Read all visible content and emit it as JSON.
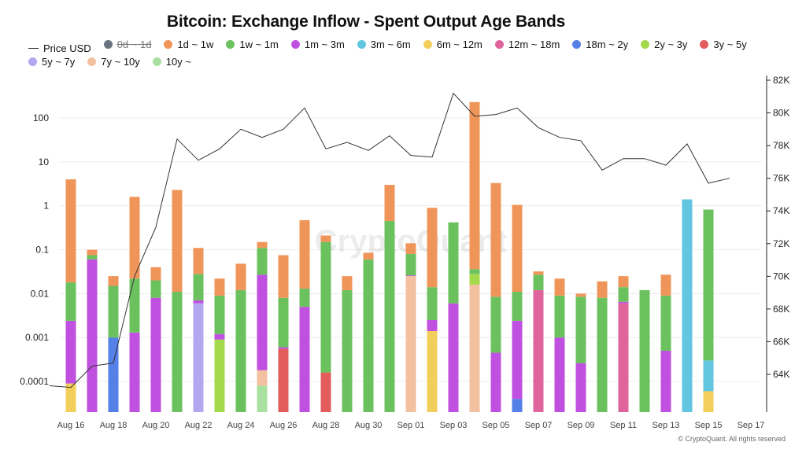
{
  "title": "Bitcoin: Exchange Inflow - Spent Output Age Bands",
  "footer": "© CryptoQuant. All rights reserved",
  "watermark": "CryptoQuant",
  "legend": [
    {
      "name": "Price USD",
      "type": "line",
      "color": "#333333"
    },
    {
      "name": "0d ~ 1d",
      "color": "#6b7280",
      "disabled": true
    },
    {
      "name": "1d ~ 1w",
      "color": "#f0955a"
    },
    {
      "name": "1w ~ 1m",
      "color": "#6cc15f"
    },
    {
      "name": "1m ~ 3m",
      "color": "#c050e0"
    },
    {
      "name": "3m ~ 6m",
      "color": "#62c6e0"
    },
    {
      "name": "6m ~ 12m",
      "color": "#f2cf5b"
    },
    {
      "name": "12m ~ 18m",
      "color": "#e0649c"
    },
    {
      "name": "18m ~ 2y",
      "color": "#5580e8"
    },
    {
      "name": "2y ~ 3y",
      "color": "#a5d94c"
    },
    {
      "name": "3y ~ 5y",
      "color": "#e25c5c"
    },
    {
      "name": "5y ~ 7y",
      "color": "#b3a8f0"
    },
    {
      "name": "7y ~ 10y",
      "color": "#f3c0a0"
    },
    {
      "name": "10y ~",
      "color": "#a8e0a0"
    }
  ],
  "chart_data": {
    "type": "bar",
    "stacked": true,
    "y_scale": "log",
    "ylim": [
      3e-05,
      700
    ],
    "y_ticks": [
      0.0001,
      0.001,
      0.01,
      0.1,
      1,
      10,
      100
    ],
    "y_tick_labels": [
      "0.0001",
      "0.001",
      "0.01",
      "0.1",
      "1",
      "10",
      "100"
    ],
    "y2_range": [
      62700,
      82000
    ],
    "y2_ticks": [
      64000,
      66000,
      68000,
      70000,
      72000,
      74000,
      76000,
      78000,
      80000,
      82000
    ],
    "y2_tick_labels": [
      "64K",
      "66K",
      "68K",
      "70K",
      "72K",
      "74K",
      "76K",
      "78K",
      "80K",
      "82K"
    ],
    "x_tick_labels": [
      "Aug 16",
      "Aug 18",
      "Aug 20",
      "Aug 22",
      "Aug 24",
      "Aug 26",
      "Aug 28",
      "Aug 30",
      "Sep 01",
      "Sep 03",
      "Sep 05",
      "Sep 07",
      "Sep 09",
      "Sep 11",
      "Sep 13",
      "Sep 15",
      "Sep 17"
    ],
    "bars": [
      {
        "date": "Aug 16",
        "segments": [
          {
            "band": "6m ~ 12m",
            "top": 9e-05
          },
          {
            "band": "1m ~ 3m",
            "top": 0.0024
          },
          {
            "band": "1w ~ 1m",
            "top": 0.018
          },
          {
            "band": "1d ~ 1w",
            "top": 4.0
          }
        ]
      },
      {
        "date": "Aug 17",
        "segments": [
          {
            "band": "1m ~ 3m",
            "top": 0.06
          },
          {
            "band": "1w ~ 1m",
            "top": 0.075
          },
          {
            "band": "1d ~ 1w",
            "top": 0.1
          }
        ]
      },
      {
        "date": "Aug 18",
        "segments": [
          {
            "band": "18m ~ 2y",
            "top": 0.001
          },
          {
            "band": "1w ~ 1m",
            "top": 0.015
          },
          {
            "band": "1d ~ 1w",
            "top": 0.025
          }
        ]
      },
      {
        "date": "Aug 19",
        "segments": [
          {
            "band": "1m ~ 3m",
            "top": 0.0013
          },
          {
            "band": "1w ~ 1m",
            "top": 0.022
          },
          {
            "band": "1d ~ 1w",
            "top": 1.6
          }
        ]
      },
      {
        "date": "Aug 20",
        "segments": [
          {
            "band": "1m ~ 3m",
            "top": 0.008
          },
          {
            "band": "1w ~ 1m",
            "top": 0.02
          },
          {
            "band": "1d ~ 1w",
            "top": 0.04
          }
        ]
      },
      {
        "date": "Aug 21",
        "segments": [
          {
            "band": "1w ~ 1m",
            "top": 0.011
          },
          {
            "band": "1d ~ 1w",
            "top": 2.3
          }
        ]
      },
      {
        "date": "Aug 22",
        "segments": [
          {
            "band": "5y ~ 7y",
            "top": 0.006
          },
          {
            "band": "1m ~ 3m",
            "top": 0.007
          },
          {
            "band": "1w ~ 1m",
            "top": 0.028
          },
          {
            "band": "1d ~ 1w",
            "top": 0.11
          }
        ]
      },
      {
        "date": "Aug 23",
        "segments": [
          {
            "band": "2y ~ 3y",
            "top": 0.0009
          },
          {
            "band": "1m ~ 3m",
            "top": 0.0012
          },
          {
            "band": "1w ~ 1m",
            "top": 0.009
          },
          {
            "band": "1d ~ 1w",
            "top": 0.022
          }
        ]
      },
      {
        "date": "Aug 24",
        "segments": [
          {
            "band": "1w ~ 1m",
            "top": 0.012
          },
          {
            "band": "1d ~ 1w",
            "top": 0.048
          }
        ]
      },
      {
        "date": "Aug 25",
        "segments": [
          {
            "band": "10y ~",
            "top": 8e-05
          },
          {
            "band": "7y ~ 10y",
            "top": 0.00018
          },
          {
            "band": "1m ~ 3m",
            "top": 0.027
          },
          {
            "band": "1w ~ 1m",
            "top": 0.11
          },
          {
            "band": "1d ~ 1w",
            "top": 0.15
          }
        ]
      },
      {
        "date": "Aug 26",
        "segments": [
          {
            "band": "3y ~ 5y",
            "top": 0.00055
          },
          {
            "band": "1m ~ 3m",
            "top": 0.0006
          },
          {
            "band": "1w ~ 1m",
            "top": 0.008
          },
          {
            "band": "1d ~ 1w",
            "top": 0.075
          }
        ]
      },
      {
        "date": "Aug 27",
        "segments": [
          {
            "band": "1m ~ 3m",
            "top": 0.005
          },
          {
            "band": "1w ~ 1m",
            "top": 0.013
          },
          {
            "band": "1d ~ 1w",
            "top": 0.47
          }
        ]
      },
      {
        "date": "Aug 28",
        "segments": [
          {
            "band": "3y ~ 5y",
            "top": 0.00016
          },
          {
            "band": "1w ~ 1m",
            "top": 0.15
          },
          {
            "band": "1d ~ 1w",
            "top": 0.21
          }
        ]
      },
      {
        "date": "Aug 29",
        "segments": [
          {
            "band": "1w ~ 1m",
            "top": 0.012
          },
          {
            "band": "1d ~ 1w",
            "top": 0.025
          }
        ]
      },
      {
        "date": "Aug 30",
        "segments": [
          {
            "band": "1w ~ 1m",
            "top": 0.06
          },
          {
            "band": "1d ~ 1w",
            "top": 0.085
          }
        ]
      },
      {
        "date": "Aug 31",
        "segments": [
          {
            "band": "1w ~ 1m",
            "top": 0.45
          },
          {
            "band": "1d ~ 1w",
            "top": 3.0
          }
        ]
      },
      {
        "date": "Sep 01",
        "segments": [
          {
            "band": "7y ~ 10y",
            "top": 0.025
          },
          {
            "band": "1m ~ 3m",
            "top": 0.026
          },
          {
            "band": "1w ~ 1m",
            "top": 0.08
          },
          {
            "band": "1d ~ 1w",
            "top": 0.14
          }
        ]
      },
      {
        "date": "Sep 02",
        "segments": [
          {
            "band": "6m ~ 12m",
            "top": 0.0014
          },
          {
            "band": "1m ~ 3m",
            "top": 0.0025
          },
          {
            "band": "1w ~ 1m",
            "top": 0.014
          },
          {
            "band": "1d ~ 1w",
            "top": 0.9
          }
        ]
      },
      {
        "date": "Sep 03",
        "segments": [
          {
            "band": "1m ~ 3m",
            "top": 0.006
          },
          {
            "band": "1w ~ 1m",
            "top": 0.42
          }
        ]
      },
      {
        "date": "Sep 04",
        "segments": [
          {
            "band": "7y ~ 10y",
            "top": 0.016
          },
          {
            "band": "2y ~ 3y",
            "top": 0.028
          },
          {
            "band": "1w ~ 1m",
            "top": 0.036
          },
          {
            "band": "1d ~ 1w",
            "top": 230
          }
        ]
      },
      {
        "date": "Sep 05",
        "segments": [
          {
            "band": "1m ~ 3m",
            "top": 0.00045
          },
          {
            "band": "1w ~ 1m",
            "top": 0.0085
          },
          {
            "band": "1d ~ 1w",
            "top": 3.3
          }
        ]
      },
      {
        "date": "Sep 06",
        "segments": [
          {
            "band": "18m ~ 2y",
            "top": 4e-05
          },
          {
            "band": "1m ~ 3m",
            "top": 0.0024
          },
          {
            "band": "1w ~ 1m",
            "top": 0.011
          },
          {
            "band": "1d ~ 1w",
            "top": 1.05
          }
        ]
      },
      {
        "date": "Sep 07",
        "segments": [
          {
            "band": "12m ~ 18m",
            "top": 0.012
          },
          {
            "band": "1w ~ 1m",
            "top": 0.027
          },
          {
            "band": "1d ~ 1w",
            "top": 0.032
          }
        ]
      },
      {
        "date": "Sep 08",
        "segments": [
          {
            "band": "1m ~ 3m",
            "top": 0.001
          },
          {
            "band": "1w ~ 1m",
            "top": 0.009
          },
          {
            "band": "1d ~ 1w",
            "top": 0.022
          }
        ]
      },
      {
        "date": "Sep 09",
        "segments": [
          {
            "band": "1m ~ 3m",
            "top": 0.00026
          },
          {
            "band": "1w ~ 1m",
            "top": 0.0085
          },
          {
            "band": "1d ~ 1w",
            "top": 0.01
          }
        ]
      },
      {
        "date": "Sep 10",
        "segments": [
          {
            "band": "1w ~ 1m",
            "top": 0.008
          },
          {
            "band": "1d ~ 1w",
            "top": 0.019
          }
        ]
      },
      {
        "date": "Sep 11",
        "segments": [
          {
            "band": "12m ~ 18m",
            "top": 0.006
          },
          {
            "band": "1m ~ 3m",
            "top": 0.0065
          },
          {
            "band": "1w ~ 1m",
            "top": 0.014
          },
          {
            "band": "1d ~ 1w",
            "top": 0.025
          }
        ]
      },
      {
        "date": "Sep 12",
        "segments": [
          {
            "band": "1w ~ 1m",
            "top": 0.012
          }
        ]
      },
      {
        "date": "Sep 13",
        "segments": [
          {
            "band": "1m ~ 3m",
            "top": 0.0005
          },
          {
            "band": "1w ~ 1m",
            "top": 0.009
          },
          {
            "band": "1d ~ 1w",
            "top": 0.027
          }
        ]
      },
      {
        "date": "Sep 14",
        "segments": [
          {
            "band": "3m ~ 6m",
            "top": 1.4
          }
        ]
      },
      {
        "date": "Sep 15",
        "segments": [
          {
            "band": "6m ~ 12m",
            "top": 6e-05
          },
          {
            "band": "3m ~ 6m",
            "top": 0.0003
          },
          {
            "band": "1w ~ 1m",
            "top": 0.82
          }
        ]
      }
    ],
    "price_series": {
      "name": "Price USD",
      "points": [
        [
          "Aug 15",
          63300
        ],
        [
          "Aug 16",
          63200
        ],
        [
          "Aug 17",
          64500
        ],
        [
          "Aug 18",
          64700
        ],
        [
          "Aug 19",
          70000
        ],
        [
          "Aug 20",
          73000
        ],
        [
          "Aug 21",
          78400
        ],
        [
          "Aug 22",
          77100
        ],
        [
          "Aug 23",
          77800
        ],
        [
          "Aug 24",
          79000
        ],
        [
          "Aug 25",
          78500
        ],
        [
          "Aug 26",
          79000
        ],
        [
          "Aug 27",
          80300
        ],
        [
          "Aug 28",
          77800
        ],
        [
          "Aug 29",
          78200
        ],
        [
          "Aug 30",
          77700
        ],
        [
          "Aug 31",
          78600
        ],
        [
          "Sep 01",
          77400
        ],
        [
          "Sep 02",
          77300
        ],
        [
          "Sep 03",
          81200
        ],
        [
          "Sep 04",
          79800
        ],
        [
          "Sep 05",
          79900
        ],
        [
          "Sep 06",
          80300
        ],
        [
          "Sep 07",
          79100
        ],
        [
          "Sep 08",
          78500
        ],
        [
          "Sep 09",
          78300
        ],
        [
          "Sep 10",
          76500
        ],
        [
          "Sep 11",
          77200
        ],
        [
          "Sep 12",
          77200
        ],
        [
          "Sep 13",
          76800
        ],
        [
          "Sep 14",
          78100
        ],
        [
          "Sep 15",
          75700
        ],
        [
          "Sep 16",
          76000
        ]
      ]
    }
  }
}
